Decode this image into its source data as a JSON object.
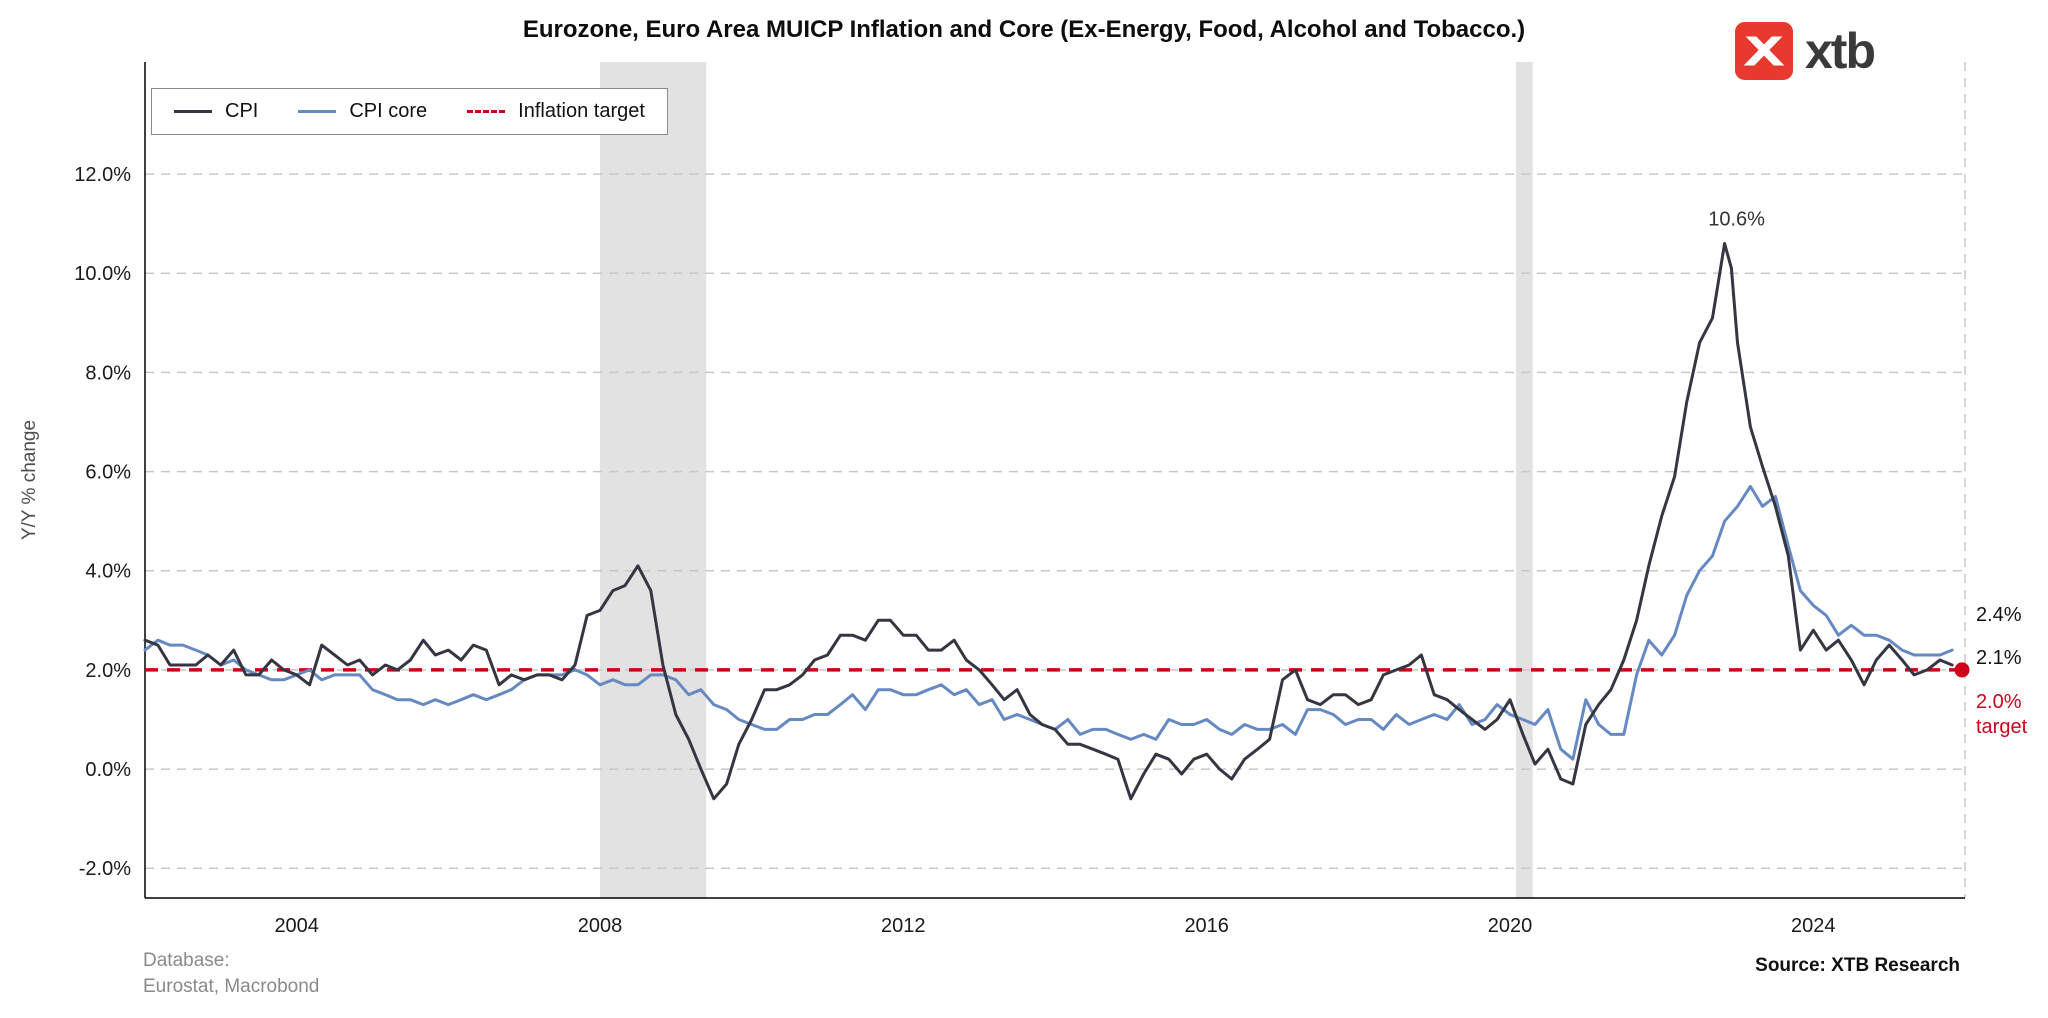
{
  "logo": {
    "text": "xtb",
    "mark_color": "#e8392e"
  },
  "footer": {
    "database_label": "Database:",
    "database_source": "Eurostat, Macrobond",
    "source": "Source: XTB Research"
  },
  "chart_data": {
    "type": "line",
    "title": "Eurozone, Euro Area MUICP Inflation and Core (Ex-Energy, Food, Alcohol and Tobacco.)",
    "ylabel": "Y/Y % change",
    "xlabel": "",
    "xlim": [
      2002,
      2026
    ],
    "ylim": [
      -2.6,
      14.26
    ],
    "x_ticks": [
      2004,
      2008,
      2012,
      2016,
      2020,
      2024
    ],
    "y_ticks": [
      -2,
      0,
      2,
      4,
      6,
      8,
      10,
      12
    ],
    "grid": "horizontal-dashed",
    "grid_color": "#c8c8c8",
    "recession_band_color": "#e2e2e2",
    "recession_bands": [
      [
        2008.0,
        2009.4
      ],
      [
        2020.08,
        2020.3
      ]
    ],
    "legend": [
      {
        "label": "CPI",
        "color": "#343642",
        "dashed": false
      },
      {
        "label": "CPI core",
        "color": "#6789c2",
        "dashed": false
      },
      {
        "label": "Inflation target",
        "color": "#d0021b",
        "dashed": true
      }
    ],
    "target_line": {
      "value": 2.0,
      "color": "#d0021b"
    },
    "annotation": {
      "text": "10.6%",
      "x": 2022.83,
      "y": 10.6
    },
    "end_labels": [
      {
        "text": "2.4%",
        "series": "CPI core",
        "color": "#141414"
      },
      {
        "text": "2.1%",
        "series": "CPI",
        "color": "#141414"
      },
      {
        "text": "2.0%",
        "text2": "target",
        "series": "Inflation target",
        "color": "#d0021b"
      }
    ],
    "series": [
      {
        "name": "CPI",
        "color": "#343642",
        "points": [
          [
            2002.0,
            2.6
          ],
          [
            2002.17,
            2.5
          ],
          [
            2002.33,
            2.1
          ],
          [
            2002.5,
            2.1
          ],
          [
            2002.67,
            2.1
          ],
          [
            2002.83,
            2.3
          ],
          [
            2003.0,
            2.1
          ],
          [
            2003.17,
            2.4
          ],
          [
            2003.33,
            1.9
          ],
          [
            2003.5,
            1.9
          ],
          [
            2003.67,
            2.2
          ],
          [
            2003.83,
            2.0
          ],
          [
            2004.0,
            1.9
          ],
          [
            2004.17,
            1.7
          ],
          [
            2004.33,
            2.5
          ],
          [
            2004.5,
            2.3
          ],
          [
            2004.67,
            2.1
          ],
          [
            2004.83,
            2.2
          ],
          [
            2005.0,
            1.9
          ],
          [
            2005.17,
            2.1
          ],
          [
            2005.33,
            2.0
          ],
          [
            2005.5,
            2.2
          ],
          [
            2005.67,
            2.6
          ],
          [
            2005.83,
            2.3
          ],
          [
            2006.0,
            2.4
          ],
          [
            2006.17,
            2.2
          ],
          [
            2006.33,
            2.5
          ],
          [
            2006.5,
            2.4
          ],
          [
            2006.67,
            1.7
          ],
          [
            2006.83,
            1.9
          ],
          [
            2007.0,
            1.8
          ],
          [
            2007.17,
            1.9
          ],
          [
            2007.33,
            1.9
          ],
          [
            2007.5,
            1.8
          ],
          [
            2007.67,
            2.1
          ],
          [
            2007.83,
            3.1
          ],
          [
            2008.0,
            3.2
          ],
          [
            2008.17,
            3.6
          ],
          [
            2008.33,
            3.7
          ],
          [
            2008.5,
            4.1
          ],
          [
            2008.67,
            3.6
          ],
          [
            2008.83,
            2.1
          ],
          [
            2009.0,
            1.1
          ],
          [
            2009.17,
            0.6
          ],
          [
            2009.33,
            0.0
          ],
          [
            2009.5,
            -0.6
          ],
          [
            2009.67,
            -0.3
          ],
          [
            2009.83,
            0.5
          ],
          [
            2010.0,
            1.0
          ],
          [
            2010.17,
            1.6
          ],
          [
            2010.33,
            1.6
          ],
          [
            2010.5,
            1.7
          ],
          [
            2010.67,
            1.9
          ],
          [
            2010.83,
            2.2
          ],
          [
            2011.0,
            2.3
          ],
          [
            2011.17,
            2.7
          ],
          [
            2011.33,
            2.7
          ],
          [
            2011.5,
            2.6
          ],
          [
            2011.67,
            3.0
          ],
          [
            2011.83,
            3.0
          ],
          [
            2012.0,
            2.7
          ],
          [
            2012.17,
            2.7
          ],
          [
            2012.33,
            2.4
          ],
          [
            2012.5,
            2.4
          ],
          [
            2012.67,
            2.6
          ],
          [
            2012.83,
            2.2
          ],
          [
            2013.0,
            2.0
          ],
          [
            2013.17,
            1.7
          ],
          [
            2013.33,
            1.4
          ],
          [
            2013.5,
            1.6
          ],
          [
            2013.67,
            1.1
          ],
          [
            2013.83,
            0.9
          ],
          [
            2014.0,
            0.8
          ],
          [
            2014.17,
            0.5
          ],
          [
            2014.33,
            0.5
          ],
          [
            2014.5,
            0.4
          ],
          [
            2014.67,
            0.3
          ],
          [
            2014.83,
            0.2
          ],
          [
            2015.0,
            -0.6
          ],
          [
            2015.17,
            -0.1
          ],
          [
            2015.33,
            0.3
          ],
          [
            2015.5,
            0.2
          ],
          [
            2015.67,
            -0.1
          ],
          [
            2015.83,
            0.2
          ],
          [
            2016.0,
            0.3
          ],
          [
            2016.17,
            0.0
          ],
          [
            2016.33,
            -0.2
          ],
          [
            2016.5,
            0.2
          ],
          [
            2016.67,
            0.4
          ],
          [
            2016.83,
            0.6
          ],
          [
            2017.0,
            1.8
          ],
          [
            2017.17,
            2.0
          ],
          [
            2017.33,
            1.4
          ],
          [
            2017.5,
            1.3
          ],
          [
            2017.67,
            1.5
          ],
          [
            2017.83,
            1.5
          ],
          [
            2018.0,
            1.3
          ],
          [
            2018.17,
            1.4
          ],
          [
            2018.33,
            1.9
          ],
          [
            2018.5,
            2.0
          ],
          [
            2018.67,
            2.1
          ],
          [
            2018.83,
            2.3
          ],
          [
            2019.0,
            1.5
          ],
          [
            2019.17,
            1.4
          ],
          [
            2019.33,
            1.2
          ],
          [
            2019.5,
            1.0
          ],
          [
            2019.67,
            0.8
          ],
          [
            2019.83,
            1.0
          ],
          [
            2020.0,
            1.4
          ],
          [
            2020.17,
            0.7
          ],
          [
            2020.33,
            0.1
          ],
          [
            2020.5,
            0.4
          ],
          [
            2020.67,
            -0.2
          ],
          [
            2020.83,
            -0.3
          ],
          [
            2021.0,
            0.9
          ],
          [
            2021.17,
            1.3
          ],
          [
            2021.33,
            1.6
          ],
          [
            2021.5,
            2.2
          ],
          [
            2021.67,
            3.0
          ],
          [
            2021.83,
            4.1
          ],
          [
            2022.0,
            5.1
          ],
          [
            2022.17,
            5.9
          ],
          [
            2022.33,
            7.4
          ],
          [
            2022.5,
            8.6
          ],
          [
            2022.67,
            9.1
          ],
          [
            2022.83,
            10.6
          ],
          [
            2022.92,
            10.1
          ],
          [
            2023.0,
            8.6
          ],
          [
            2023.17,
            6.9
          ],
          [
            2023.33,
            6.1
          ],
          [
            2023.5,
            5.3
          ],
          [
            2023.67,
            4.3
          ],
          [
            2023.83,
            2.4
          ],
          [
            2024.0,
            2.8
          ],
          [
            2024.17,
            2.4
          ],
          [
            2024.33,
            2.6
          ],
          [
            2024.5,
            2.2
          ],
          [
            2024.67,
            1.7
          ],
          [
            2024.83,
            2.2
          ],
          [
            2025.0,
            2.5
          ],
          [
            2025.17,
            2.2
          ],
          [
            2025.33,
            1.9
          ],
          [
            2025.5,
            2.0
          ],
          [
            2025.67,
            2.2
          ],
          [
            2025.83,
            2.1
          ]
        ]
      },
      {
        "name": "CPI core",
        "color": "#6789c2",
        "points": [
          [
            2002.0,
            2.4
          ],
          [
            2002.17,
            2.6
          ],
          [
            2002.33,
            2.5
          ],
          [
            2002.5,
            2.5
          ],
          [
            2002.67,
            2.4
          ],
          [
            2002.83,
            2.3
          ],
          [
            2003.0,
            2.1
          ],
          [
            2003.17,
            2.2
          ],
          [
            2003.33,
            2.0
          ],
          [
            2003.5,
            1.9
          ],
          [
            2003.67,
            1.8
          ],
          [
            2003.83,
            1.8
          ],
          [
            2004.0,
            1.9
          ],
          [
            2004.17,
            2.0
          ],
          [
            2004.33,
            1.8
          ],
          [
            2004.5,
            1.9
          ],
          [
            2004.67,
            1.9
          ],
          [
            2004.83,
            1.9
          ],
          [
            2005.0,
            1.6
          ],
          [
            2005.17,
            1.5
          ],
          [
            2005.33,
            1.4
          ],
          [
            2005.5,
            1.4
          ],
          [
            2005.67,
            1.3
          ],
          [
            2005.83,
            1.4
          ],
          [
            2006.0,
            1.3
          ],
          [
            2006.17,
            1.4
          ],
          [
            2006.33,
            1.5
          ],
          [
            2006.5,
            1.4
          ],
          [
            2006.67,
            1.5
          ],
          [
            2006.83,
            1.6
          ],
          [
            2007.0,
            1.8
          ],
          [
            2007.17,
            1.9
          ],
          [
            2007.33,
            1.9
          ],
          [
            2007.5,
            1.9
          ],
          [
            2007.67,
            2.0
          ],
          [
            2007.83,
            1.9
          ],
          [
            2008.0,
            1.7
          ],
          [
            2008.17,
            1.8
          ],
          [
            2008.33,
            1.7
          ],
          [
            2008.5,
            1.7
          ],
          [
            2008.67,
            1.9
          ],
          [
            2008.83,
            1.9
          ],
          [
            2009.0,
            1.8
          ],
          [
            2009.17,
            1.5
          ],
          [
            2009.33,
            1.6
          ],
          [
            2009.5,
            1.3
          ],
          [
            2009.67,
            1.2
          ],
          [
            2009.83,
            1.0
          ],
          [
            2010.0,
            0.9
          ],
          [
            2010.17,
            0.8
          ],
          [
            2010.33,
            0.8
          ],
          [
            2010.5,
            1.0
          ],
          [
            2010.67,
            1.0
          ],
          [
            2010.83,
            1.1
          ],
          [
            2011.0,
            1.1
          ],
          [
            2011.17,
            1.3
          ],
          [
            2011.33,
            1.5
          ],
          [
            2011.5,
            1.2
          ],
          [
            2011.67,
            1.6
          ],
          [
            2011.83,
            1.6
          ],
          [
            2012.0,
            1.5
          ],
          [
            2012.17,
            1.5
          ],
          [
            2012.33,
            1.6
          ],
          [
            2012.5,
            1.7
          ],
          [
            2012.67,
            1.5
          ],
          [
            2012.83,
            1.6
          ],
          [
            2013.0,
            1.3
          ],
          [
            2013.17,
            1.4
          ],
          [
            2013.33,
            1.0
          ],
          [
            2013.5,
            1.1
          ],
          [
            2013.67,
            1.0
          ],
          [
            2013.83,
            0.9
          ],
          [
            2014.0,
            0.8
          ],
          [
            2014.17,
            1.0
          ],
          [
            2014.33,
            0.7
          ],
          [
            2014.5,
            0.8
          ],
          [
            2014.67,
            0.8
          ],
          [
            2014.83,
            0.7
          ],
          [
            2015.0,
            0.6
          ],
          [
            2015.17,
            0.7
          ],
          [
            2015.33,
            0.6
          ],
          [
            2015.5,
            1.0
          ],
          [
            2015.67,
            0.9
          ],
          [
            2015.83,
            0.9
          ],
          [
            2016.0,
            1.0
          ],
          [
            2016.17,
            0.8
          ],
          [
            2016.33,
            0.7
          ],
          [
            2016.5,
            0.9
          ],
          [
            2016.67,
            0.8
          ],
          [
            2016.83,
            0.8
          ],
          [
            2017.0,
            0.9
          ],
          [
            2017.17,
            0.7
          ],
          [
            2017.33,
            1.2
          ],
          [
            2017.5,
            1.2
          ],
          [
            2017.67,
            1.1
          ],
          [
            2017.83,
            0.9
          ],
          [
            2018.0,
            1.0
          ],
          [
            2018.17,
            1.0
          ],
          [
            2018.33,
            0.8
          ],
          [
            2018.5,
            1.1
          ],
          [
            2018.67,
            0.9
          ],
          [
            2018.83,
            1.0
          ],
          [
            2019.0,
            1.1
          ],
          [
            2019.17,
            1.0
          ],
          [
            2019.33,
            1.3
          ],
          [
            2019.5,
            0.9
          ],
          [
            2019.67,
            1.0
          ],
          [
            2019.83,
            1.3
          ],
          [
            2020.0,
            1.1
          ],
          [
            2020.17,
            1.0
          ],
          [
            2020.33,
            0.9
          ],
          [
            2020.5,
            1.2
          ],
          [
            2020.67,
            0.4
          ],
          [
            2020.83,
            0.2
          ],
          [
            2021.0,
            1.4
          ],
          [
            2021.17,
            0.9
          ],
          [
            2021.33,
            0.7
          ],
          [
            2021.5,
            0.7
          ],
          [
            2021.67,
            1.9
          ],
          [
            2021.83,
            2.6
          ],
          [
            2022.0,
            2.3
          ],
          [
            2022.17,
            2.7
          ],
          [
            2022.33,
            3.5
          ],
          [
            2022.5,
            4.0
          ],
          [
            2022.67,
            4.3
          ],
          [
            2022.83,
            5.0
          ],
          [
            2023.0,
            5.3
          ],
          [
            2023.17,
            5.7
          ],
          [
            2023.33,
            5.3
          ],
          [
            2023.5,
            5.5
          ],
          [
            2023.67,
            4.5
          ],
          [
            2023.83,
            3.6
          ],
          [
            2024.0,
            3.3
          ],
          [
            2024.17,
            3.1
          ],
          [
            2024.33,
            2.7
          ],
          [
            2024.5,
            2.9
          ],
          [
            2024.67,
            2.7
          ],
          [
            2024.83,
            2.7
          ],
          [
            2025.0,
            2.6
          ],
          [
            2025.17,
            2.4
          ],
          [
            2025.33,
            2.3
          ],
          [
            2025.5,
            2.3
          ],
          [
            2025.67,
            2.3
          ],
          [
            2025.83,
            2.4
          ]
        ]
      }
    ]
  }
}
